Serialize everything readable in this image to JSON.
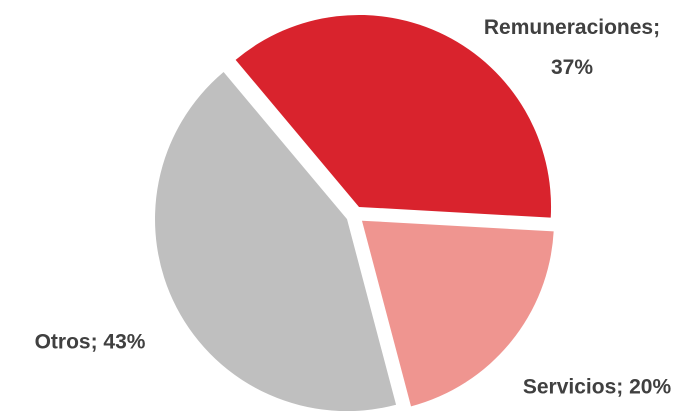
{
  "chart_data": {
    "type": "pie",
    "categories": [
      "Remuneraciones",
      "Servicios",
      "Otros"
    ],
    "values": [
      37,
      20,
      43
    ],
    "value_labels": [
      "Remuneraciones; 37%",
      "Servicios; 20%",
      "Otros; 43%"
    ],
    "colors": [
      "#d9232d",
      "#ef9590",
      "#bfbfbf"
    ]
  }
}
